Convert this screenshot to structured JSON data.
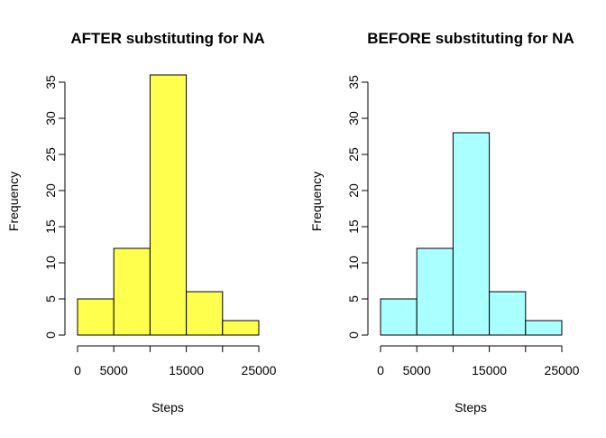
{
  "colors": {
    "after": "#ffff4d",
    "before": "#aaffff",
    "border": "#000000"
  },
  "chart_data": [
    {
      "type": "bar",
      "title": "AFTER substituting for NA",
      "xlabel": "Steps",
      "ylabel": "Frequency",
      "bins": [
        [
          0,
          5000
        ],
        [
          5000,
          10000
        ],
        [
          10000,
          15000
        ],
        [
          15000,
          20000
        ],
        [
          20000,
          25000
        ]
      ],
      "values": [
        5,
        12,
        36,
        6,
        2
      ],
      "xlim": [
        0,
        25000
      ],
      "ylim": [
        0,
        35
      ],
      "xticks": [
        0,
        5000,
        10000,
        15000,
        20000,
        25000
      ],
      "xtick_labels": [
        "0",
        "5000",
        "",
        "15000",
        "",
        "25000"
      ],
      "yticks": [
        0,
        5,
        10,
        15,
        20,
        25,
        30,
        35
      ],
      "ytick_labels": [
        "0",
        "5",
        "10",
        "15",
        "20",
        "25",
        "30",
        "35"
      ],
      "grid": false,
      "color": "#ffff4d"
    },
    {
      "type": "bar",
      "title": "BEFORE substituting for NA",
      "xlabel": "Steps",
      "ylabel": "Frequency",
      "bins": [
        [
          0,
          5000
        ],
        [
          5000,
          10000
        ],
        [
          10000,
          15000
        ],
        [
          15000,
          20000
        ],
        [
          20000,
          25000
        ]
      ],
      "values": [
        5,
        12,
        28,
        6,
        2
      ],
      "xlim": [
        0,
        25000
      ],
      "ylim": [
        0,
        35
      ],
      "xticks": [
        0,
        5000,
        10000,
        15000,
        20000,
        25000
      ],
      "xtick_labels": [
        "0",
        "5000",
        "",
        "15000",
        "",
        "25000"
      ],
      "yticks": [
        0,
        5,
        10,
        15,
        20,
        25,
        30,
        35
      ],
      "ytick_labels": [
        "0",
        "5",
        "10",
        "15",
        "20",
        "25",
        "30",
        "35"
      ],
      "grid": false,
      "color": "#aaffff"
    }
  ]
}
